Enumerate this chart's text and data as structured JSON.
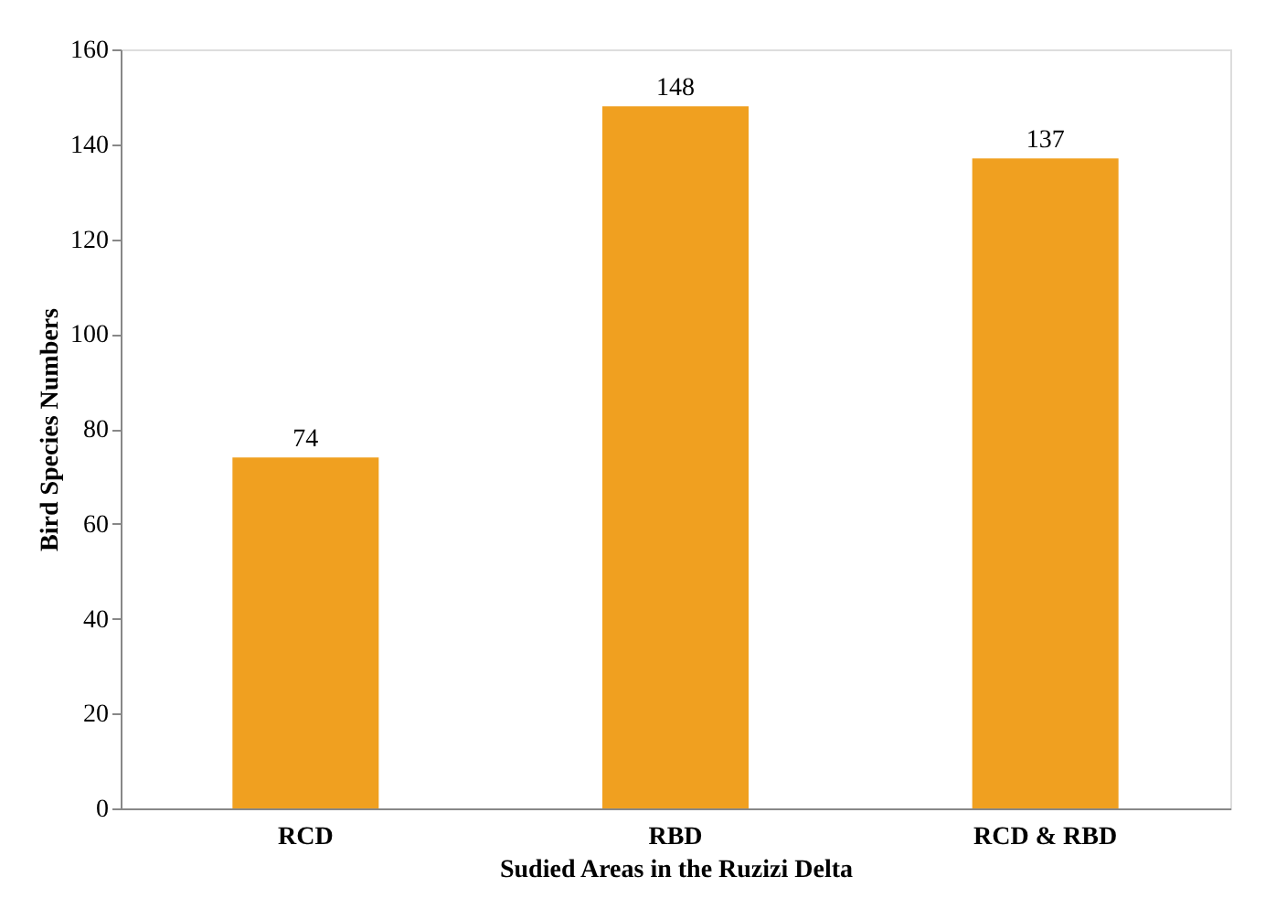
{
  "chart_data": {
    "type": "bar",
    "categories": [
      "RCD",
      "RBD",
      "RCD & RBD"
    ],
    "values": [
      74,
      148,
      137
    ],
    "color": "#f0a020",
    "xlabel": "Sudied Areas in the Ruzizi Delta",
    "ylabel": "Bird  Species Numbers",
    "ylim": [
      0,
      160
    ],
    "yticks": [
      0,
      20,
      40,
      60,
      80,
      100,
      120,
      140,
      160
    ],
    "data_labels": true,
    "grid": false
  }
}
